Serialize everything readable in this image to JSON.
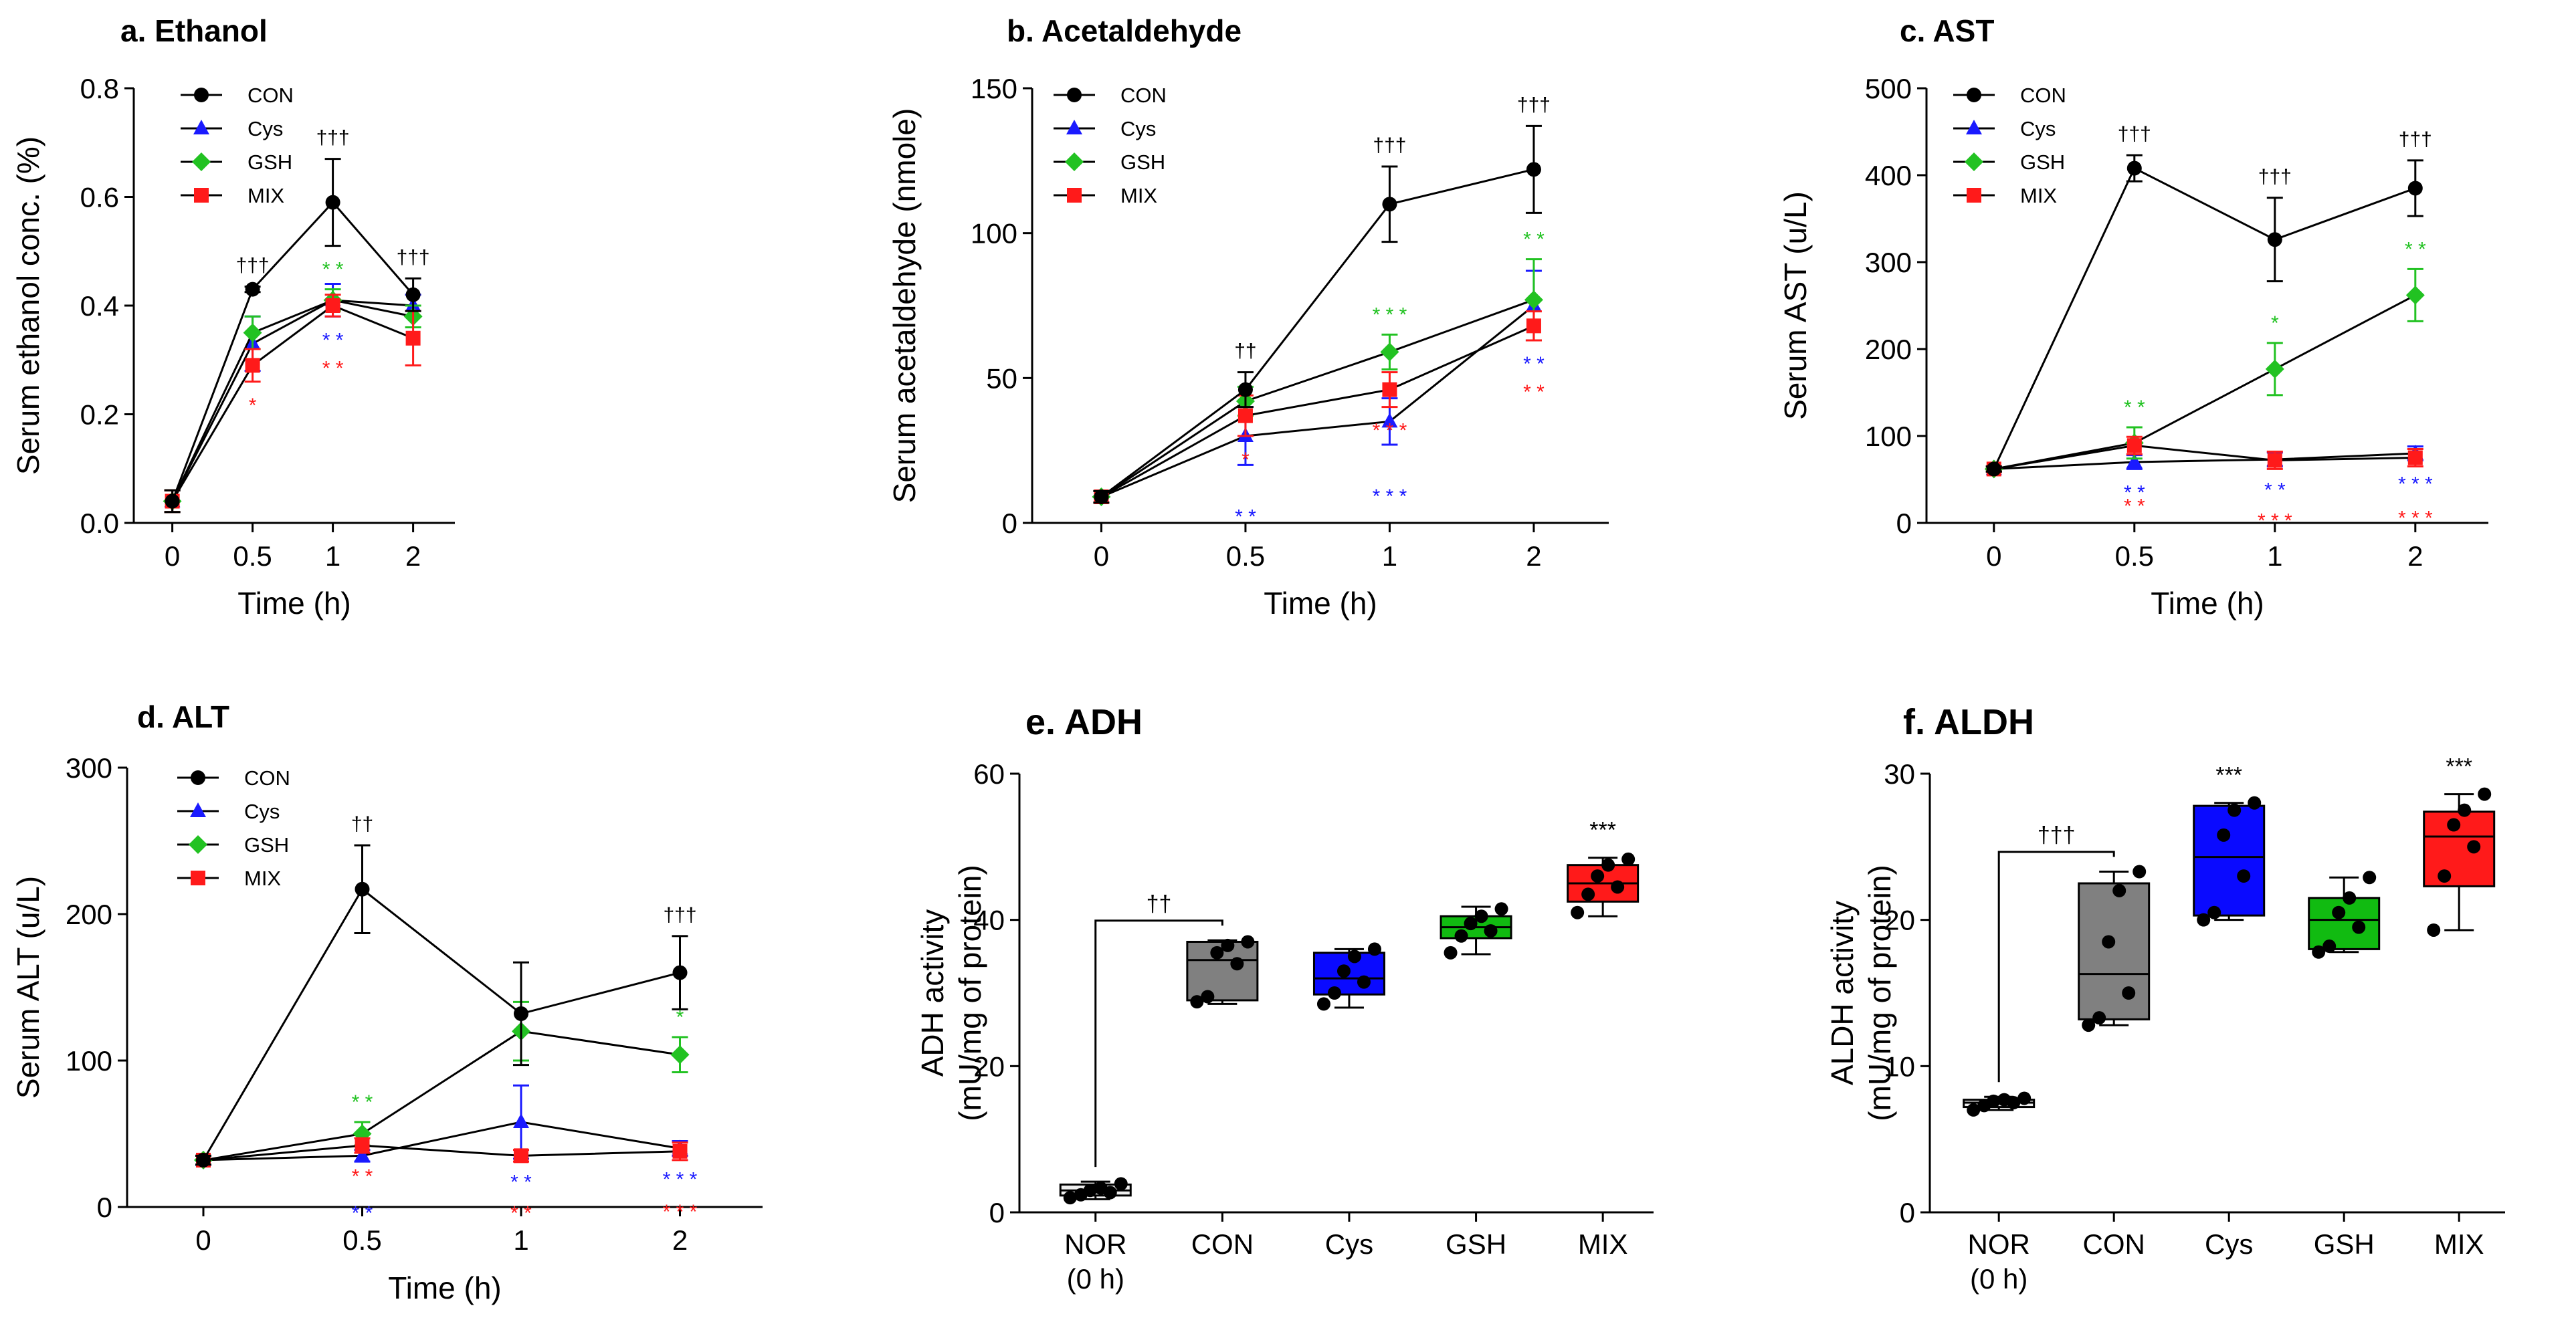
{
  "palette": {
    "CON": "#000000",
    "Cys": "#1a1aff",
    "GSH": "#22c222",
    "MIX": "#ff1a1a",
    "box_CON": "#808080",
    "box_Cys": "#0a0aff",
    "box_GSH": "#11bb11",
    "box_MIX": "#ff1a1a",
    "box_NOR": "#eeeeee"
  },
  "chart_data": [
    {
      "id": "a",
      "type": "line",
      "title": "a. Ethanol",
      "xlabel": "Time (h)",
      "ylabel": "Serum ethanol conc. (%)",
      "categories": [
        "0",
        "0.5",
        "1",
        "2"
      ],
      "yticks": [
        "0.0",
        "0.2",
        "0.4",
        "0.6",
        "0.8"
      ],
      "ylim": [
        0,
        0.8
      ],
      "legend": [
        "CON",
        "Cys",
        "GSH",
        "MIX"
      ],
      "series": [
        {
          "name": "CON",
          "values": [
            0.04,
            0.43,
            0.59,
            0.42
          ],
          "errors": [
            0.02,
            0.005,
            0.08,
            0.03
          ]
        },
        {
          "name": "Cys",
          "values": [
            0.04,
            0.33,
            0.41,
            0.4
          ],
          "errors": [
            0.02,
            0.05,
            0.03,
            0.02
          ]
        },
        {
          "name": "GSH",
          "values": [
            0.04,
            0.35,
            0.41,
            0.38
          ],
          "errors": [
            0.02,
            0.03,
            0.02,
            0.02
          ]
        },
        {
          "name": "MIX",
          "values": [
            0.04,
            0.29,
            0.4,
            0.34
          ],
          "errors": [
            0.02,
            0.03,
            0.02,
            0.05
          ]
        }
      ],
      "annotations": [
        {
          "text": "†††",
          "series": "CON",
          "at": 1
        },
        {
          "text": "†††",
          "series": "CON",
          "at": 2
        },
        {
          "text": "†††",
          "series": "CON",
          "at": 3
        },
        {
          "text": "*",
          "series": "MIX",
          "at": 1
        },
        {
          "text": "* *",
          "series": "GSH",
          "at": 2
        },
        {
          "text": "* *",
          "series": "Cys",
          "at": 2
        },
        {
          "text": "* *",
          "series": "MIX",
          "at": 2
        }
      ]
    },
    {
      "id": "b",
      "type": "line",
      "title": "b. Acetaldehyde",
      "xlabel": "Time (h)",
      "ylabel": "Serum acetaldehyde (nmole)",
      "categories": [
        "0",
        "0.5",
        "1",
        "2"
      ],
      "yticks": [
        "0",
        "50",
        "100",
        "150"
      ],
      "ylim": [
        0,
        150
      ],
      "legend": [
        "CON",
        "Cys",
        "GSH",
        "MIX"
      ],
      "series": [
        {
          "name": "CON",
          "values": [
            9,
            46,
            110,
            122
          ],
          "errors": [
            2,
            6,
            13,
            15
          ]
        },
        {
          "name": "Cys",
          "values": [
            9,
            30,
            35,
            75
          ],
          "errors": [
            2,
            10,
            8,
            12
          ]
        },
        {
          "name": "GSH",
          "values": [
            9,
            42,
            59,
            77
          ],
          "errors": [
            2,
            5,
            6,
            14
          ]
        },
        {
          "name": "MIX",
          "values": [
            9,
            37,
            46,
            68
          ],
          "errors": [
            2,
            7,
            6,
            5
          ]
        }
      ],
      "annotations": [
        {
          "text": "††",
          "series": "CON",
          "at": 1
        },
        {
          "text": "†††",
          "series": "CON",
          "at": 2
        },
        {
          "text": "†††",
          "series": "CON",
          "at": 3
        },
        {
          "text": "*",
          "series": "MIX",
          "at": 1
        },
        {
          "text": "* *",
          "series": "Cys",
          "at": 1
        },
        {
          "text": "* * *",
          "series": "GSH",
          "at": 2
        },
        {
          "text": "* * *",
          "series": "MIX",
          "at": 2
        },
        {
          "text": "* * *",
          "series": "Cys",
          "at": 2
        },
        {
          "text": "* *",
          "series": "GSH",
          "at": 3
        },
        {
          "text": "* *",
          "series": "Cys",
          "at": 3
        },
        {
          "text": "* *",
          "series": "MIX",
          "at": 3
        }
      ]
    },
    {
      "id": "c",
      "type": "line",
      "title": "c. AST",
      "xlabel": "Time (h)",
      "ylabel": "Serum AST (u/L)",
      "categories": [
        "0",
        "0.5",
        "1",
        "2"
      ],
      "yticks": [
        "0",
        "100",
        "200",
        "300",
        "400",
        "500"
      ],
      "ylim": [
        0,
        500
      ],
      "legend": [
        "CON",
        "Cys",
        "GSH",
        "MIX"
      ],
      "series": [
        {
          "name": "CON",
          "values": [
            62,
            408,
            326,
            385
          ],
          "errors": [
            3,
            15,
            48,
            32
          ]
        },
        {
          "name": "Cys",
          "values": [
            62,
            70,
            73,
            80
          ],
          "errors": [
            3,
            8,
            8,
            8
          ]
        },
        {
          "name": "GSH",
          "values": [
            62,
            92,
            177,
            262
          ],
          "errors": [
            3,
            18,
            30,
            30
          ]
        },
        {
          "name": "MIX",
          "values": [
            62,
            89,
            72,
            75
          ],
          "errors": [
            3,
            10,
            10,
            10
          ]
        }
      ],
      "annotations": [
        {
          "text": "†††",
          "series": "CON",
          "at": 1
        },
        {
          "text": "†††",
          "series": "CON",
          "at": 2
        },
        {
          "text": "†††",
          "series": "CON",
          "at": 3
        },
        {
          "text": "* *",
          "series": "GSH",
          "at": 1
        },
        {
          "text": "* *",
          "series": "Cys",
          "at": 1
        },
        {
          "text": "* *",
          "series": "MIX",
          "at": 1
        },
        {
          "text": "*",
          "series": "GSH",
          "at": 2
        },
        {
          "text": "* *",
          "series": "Cys",
          "at": 2
        },
        {
          "text": "* * *",
          "series": "MIX",
          "at": 2
        },
        {
          "text": "* *",
          "series": "GSH",
          "at": 3
        },
        {
          "text": "* * *",
          "series": "Cys",
          "at": 3
        },
        {
          "text": "* * *",
          "series": "MIX",
          "at": 3
        }
      ]
    },
    {
      "id": "d",
      "type": "line",
      "title": "d. ALT",
      "xlabel": "Time (h)",
      "ylabel": "Serum ALT (u/L)",
      "categories": [
        "0",
        "0.5",
        "1",
        "2"
      ],
      "yticks": [
        "0",
        "100",
        "200",
        "300"
      ],
      "ylim": [
        0,
        300
      ],
      "legend": [
        "CON",
        "Cys",
        "GSH",
        "MIX"
      ],
      "series": [
        {
          "name": "CON",
          "values": [
            32,
            217,
            132,
            160
          ],
          "errors": [
            3,
            30,
            35,
            25
          ]
        },
        {
          "name": "Cys",
          "values": [
            32,
            35,
            58,
            40
          ],
          "errors": [
            3,
            4,
            25,
            5
          ]
        },
        {
          "name": "GSH",
          "values": [
            32,
            50,
            120,
            104
          ],
          "errors": [
            3,
            8,
            20,
            12
          ]
        },
        {
          "name": "MIX",
          "values": [
            32,
            42,
            35,
            38
          ],
          "errors": [
            3,
            5,
            4,
            6
          ]
        }
      ],
      "annotations": [
        {
          "text": "††",
          "series": "CON",
          "at": 1
        },
        {
          "text": "†††",
          "series": "CON",
          "at": 3
        },
        {
          "text": "* *",
          "series": "GSH",
          "at": 1
        },
        {
          "text": "* *",
          "series": "MIX",
          "at": 1
        },
        {
          "text": "* *",
          "series": "Cys",
          "at": 1
        },
        {
          "text": "* *",
          "series": "Cys",
          "at": 2
        },
        {
          "text": "* *",
          "series": "MIX",
          "at": 2
        },
        {
          "text": "*",
          "series": "GSH",
          "at": 3
        },
        {
          "text": "* * *",
          "series": "Cys",
          "at": 3
        },
        {
          "text": "* * *",
          "series": "MIX",
          "at": 3
        }
      ]
    },
    {
      "id": "e",
      "type": "box",
      "title": "e.  ADH",
      "ylabel_lines": [
        "ADH activity",
        "(mU/mg of protein)"
      ],
      "categories": [
        "NOR",
        "CON",
        "Cys",
        "GSH",
        "MIX"
      ],
      "category_sublabels": [
        "(0 h)",
        "",
        "",
        "",
        ""
      ],
      "yticks": [
        "0",
        "20",
        "40",
        "60"
      ],
      "ylim": [
        0,
        60
      ],
      "boxes": [
        {
          "group": "NOR",
          "min": 1.8,
          "q1": 2.3,
          "median": 3.0,
          "q3": 3.8,
          "max": 4.2,
          "points": [
            2.0,
            2.4,
            2.7,
            3.0,
            3.3,
            3.9
          ]
        },
        {
          "group": "CON",
          "min": 28.5,
          "q1": 29.0,
          "median": 34.5,
          "q3": 37.0,
          "max": 37.2,
          "points": [
            28.8,
            29.5,
            34.0,
            35.5,
            36.5,
            37.0
          ]
        },
        {
          "group": "Cys",
          "min": 28.0,
          "q1": 29.8,
          "median": 32.0,
          "q3": 35.5,
          "max": 36.0,
          "points": [
            28.5,
            30.0,
            31.5,
            33.0,
            35.0,
            36.0
          ]
        },
        {
          "group": "GSH",
          "min": 35.3,
          "q1": 37.5,
          "median": 39.0,
          "q3": 40.5,
          "max": 41.8,
          "points": [
            35.5,
            37.8,
            38.5,
            39.5,
            40.5,
            41.5
          ]
        },
        {
          "group": "MIX",
          "min": 40.5,
          "q1": 42.5,
          "median": 45.0,
          "q3": 47.5,
          "max": 48.5,
          "points": [
            41.0,
            43.5,
            44.5,
            46.0,
            47.5,
            48.3
          ]
        }
      ],
      "annotations": [
        {
          "text": "***",
          "group": "MIX"
        },
        {
          "text": "††",
          "bracket": [
            "NOR",
            "CON"
          ]
        }
      ]
    },
    {
      "id": "f",
      "type": "box",
      "title": "f.  ALDH",
      "ylabel_lines": [
        "ALDH activity",
        "(mU/mg of protein)"
      ],
      "categories": [
        "NOR",
        "CON",
        "Cys",
        "GSH",
        "MIX"
      ],
      "category_sublabels": [
        "(0 h)",
        "",
        "",
        "",
        ""
      ],
      "yticks": [
        "0",
        "10",
        "20",
        "30"
      ],
      "ylim": [
        0,
        30
      ],
      "boxes": [
        {
          "group": "NOR",
          "min": 7.0,
          "q1": 7.2,
          "median": 7.5,
          "q3": 7.7,
          "max": 7.9,
          "points": [
            7.0,
            7.3,
            7.5,
            7.6,
            7.7,
            7.8
          ]
        },
        {
          "group": "CON",
          "min": 12.8,
          "q1": 13.2,
          "median": 16.3,
          "q3": 22.5,
          "max": 23.3,
          "points": [
            12.8,
            13.3,
            15.0,
            18.5,
            22.0,
            23.3
          ]
        },
        {
          "group": "Cys",
          "min": 20.0,
          "q1": 20.3,
          "median": 24.3,
          "q3": 27.8,
          "max": 28.0,
          "points": [
            20.0,
            20.5,
            23.0,
            25.8,
            27.5,
            28.0
          ]
        },
        {
          "group": "GSH",
          "min": 17.8,
          "q1": 18.0,
          "median": 20.0,
          "q3": 21.5,
          "max": 22.9,
          "points": [
            17.8,
            18.2,
            19.5,
            20.5,
            21.5,
            22.9
          ]
        },
        {
          "group": "MIX",
          "min": 19.3,
          "q1": 22.3,
          "median": 25.7,
          "q3": 27.4,
          "max": 28.6,
          "points": [
            19.3,
            23.0,
            25.0,
            26.5,
            27.5,
            28.6
          ]
        }
      ],
      "annotations": [
        {
          "text": "***",
          "group": "Cys"
        },
        {
          "text": "***",
          "group": "MIX"
        },
        {
          "text": "†††",
          "bracket": [
            "NOR",
            "CON"
          ]
        }
      ]
    }
  ]
}
